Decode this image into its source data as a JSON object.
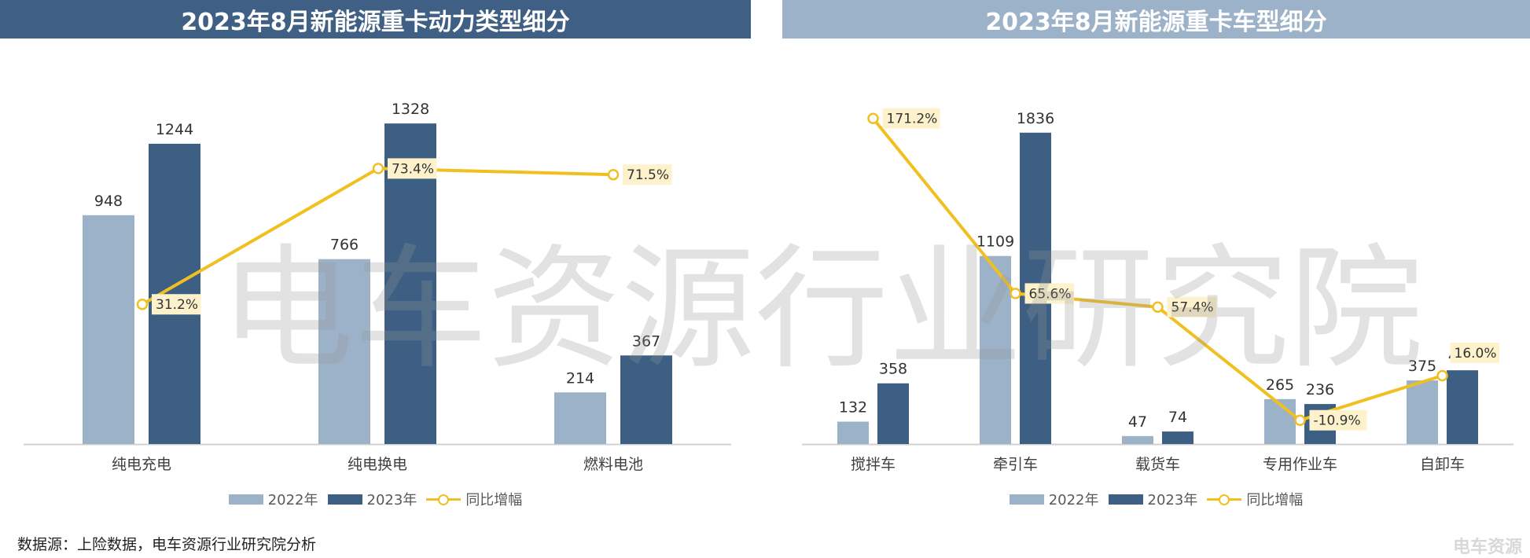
{
  "charts": {
    "left": {
      "title": "2023年8月新能源重卡动力类型细分"
    },
    "right": {
      "title": "2023年8月新能源重卡车型细分"
    }
  },
  "legend": {
    "s2022": "2022年",
    "s2023": "2023年",
    "growth": "同比增幅"
  },
  "source_note": "数据源：上险数据，电车资源行业研究院分析",
  "watermark": "电车资源行业研究院",
  "logo_text": "电车资源",
  "colors": {
    "s2022": "#9cb2c8",
    "s2023": "#3c5f83",
    "growth": "#f0c020",
    "label_bg": "#fdf2cc"
  },
  "chart_data": [
    {
      "type": "bar",
      "title": "2023年8月新能源重卡动力类型细分",
      "categories": [
        "纯电充电",
        "纯电换电",
        "燃料电池"
      ],
      "series": [
        {
          "name": "2022年",
          "values": [
            948,
            766,
            214
          ]
        },
        {
          "name": "2023年",
          "values": [
            1244,
            1328,
            367
          ]
        }
      ],
      "line_series": {
        "name": "同比增幅",
        "values": [
          31.2,
          73.4,
          71.5
        ],
        "labels": [
          "31.2%",
          "73.4%",
          "71.5%"
        ]
      },
      "ylim": [
        0,
        1400
      ],
      "line_ylim": [
        0,
        105
      ],
      "grid": false,
      "legend": "bottom"
    },
    {
      "type": "bar",
      "title": "2023年8月新能源重卡车型细分",
      "categories": [
        "搅拌车",
        "牵引车",
        "载货车",
        "专用作业车",
        "自卸车"
      ],
      "series": [
        {
          "name": "2022年",
          "values": [
            132,
            1109,
            47,
            265,
            375
          ]
        },
        {
          "name": "2023年",
          "values": [
            358,
            1836,
            74,
            236,
            435
          ]
        }
      ],
      "line_series": {
        "name": "同比增幅",
        "values": [
          171.2,
          65.6,
          57.4,
          -10.9,
          16.0
        ],
        "labels": [
          "171.2%",
          "65.6%",
          "57.4%",
          "-10.9%",
          "16.0%"
        ]
      },
      "ylim": [
        0,
        1900
      ],
      "line_ylim": [
        -30,
        200
      ],
      "grid": false,
      "legend": "bottom"
    }
  ]
}
